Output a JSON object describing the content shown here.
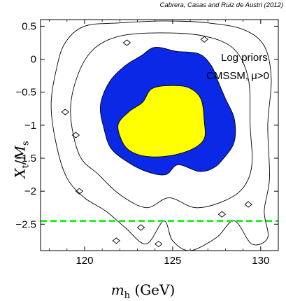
{
  "credit": "Cabrera, Casas and Ruiz de Austri (2012)",
  "chart_data": {
    "type": "contour",
    "xlabel_var": "m",
    "xlabel_sub": "h",
    "xlabel_unit": "(GeV)",
    "ylabel_var": "X",
    "ylabel_sub": "t",
    "ylabel_den": "M",
    "ylabel_den_sub": "s",
    "xlim": [
      117.5,
      131
    ],
    "ylim": [
      -2.9,
      0.6
    ],
    "x_ticks": [
      120,
      125,
      130
    ],
    "y_ticks": [
      0.5,
      0,
      -0.5,
      -1,
      -1.5,
      -2,
      -2.5
    ],
    "x_tick_labels": [
      "120",
      "125",
      "130"
    ],
    "y_tick_labels": [
      "0.5",
      "0",
      "−0.5",
      "−1",
      "−1.5",
      "−2",
      "−2.5"
    ],
    "annotations": [
      "Log priors",
      "CMSSM, μ>0"
    ],
    "reference_line": {
      "y": -2.45,
      "style": "dashed",
      "color": "#22ee22"
    },
    "regions": [
      {
        "level": "outer",
        "fill": "none",
        "stroke": "#000000",
        "points": [
          [
            118.1,
            -0.7
          ],
          [
            118.4,
            -0.15
          ],
          [
            118.9,
            0.25
          ],
          [
            120.0,
            0.5
          ],
          [
            122.0,
            0.55
          ],
          [
            124.5,
            0.58
          ],
          [
            127.0,
            0.55
          ],
          [
            129.0,
            0.45
          ],
          [
            130.2,
            0.2
          ],
          [
            130.6,
            -0.3
          ],
          [
            130.4,
            -1.0
          ],
          [
            130.5,
            -1.8
          ],
          [
            130.2,
            -2.3
          ],
          [
            130.4,
            -2.7
          ],
          [
            129.5,
            -2.8
          ],
          [
            128.5,
            -2.45
          ],
          [
            127.5,
            -2.7
          ],
          [
            126.0,
            -2.9
          ],
          [
            125.0,
            -2.75
          ],
          [
            124.5,
            -2.45
          ],
          [
            123.5,
            -2.8
          ],
          [
            122.3,
            -2.55
          ],
          [
            121.2,
            -2.3
          ],
          [
            120.0,
            -2.1
          ],
          [
            119.0,
            -1.8
          ],
          [
            118.4,
            -1.3
          ]
        ]
      },
      {
        "level": "middle",
        "fill": "none",
        "stroke": "#000000",
        "points": [
          [
            119.2,
            -0.8
          ],
          [
            119.6,
            -0.25
          ],
          [
            120.5,
            0.15
          ],
          [
            122.0,
            0.35
          ],
          [
            124.3,
            0.4
          ],
          [
            126.8,
            0.35
          ],
          [
            128.5,
            0.15
          ],
          [
            129.3,
            -0.3
          ],
          [
            129.4,
            -1.0
          ],
          [
            129.5,
            -1.6
          ],
          [
            129.0,
            -1.95
          ],
          [
            127.9,
            -2.15
          ],
          [
            126.3,
            -2.25
          ],
          [
            124.8,
            -2.1
          ],
          [
            123.5,
            -2.25
          ],
          [
            122.0,
            -2.05
          ],
          [
            120.8,
            -1.75
          ],
          [
            119.7,
            -1.45
          ]
        ]
      },
      {
        "level": "blue",
        "fill": "#0a28e6",
        "stroke": "#000000",
        "points": [
          [
            120.9,
            -0.7
          ],
          [
            121.4,
            -0.35
          ],
          [
            122.3,
            -0.1
          ],
          [
            123.2,
            0.05
          ],
          [
            124.0,
            0.18
          ],
          [
            125.2,
            0.12
          ],
          [
            126.5,
            0.08
          ],
          [
            127.2,
            -0.1
          ],
          [
            127.6,
            -0.35
          ],
          [
            128.0,
            -0.6
          ],
          [
            128.5,
            -0.9
          ],
          [
            128.5,
            -1.25
          ],
          [
            127.9,
            -1.5
          ],
          [
            127.3,
            -1.65
          ],
          [
            126.5,
            -1.7
          ],
          [
            125.3,
            -1.6
          ],
          [
            124.6,
            -1.75
          ],
          [
            123.5,
            -1.7
          ],
          [
            122.4,
            -1.55
          ],
          [
            121.5,
            -1.35
          ],
          [
            121.1,
            -1.05
          ]
        ]
      },
      {
        "level": "yellow",
        "fill": "#ffff00",
        "stroke": "#000000",
        "points": [
          [
            121.9,
            -1.0
          ],
          [
            122.5,
            -0.8
          ],
          [
            123.3,
            -0.65
          ],
          [
            123.8,
            -0.45
          ],
          [
            124.8,
            -0.4
          ],
          [
            125.9,
            -0.43
          ],
          [
            126.6,
            -0.6
          ],
          [
            126.8,
            -0.95
          ],
          [
            126.8,
            -1.2
          ],
          [
            126.2,
            -1.35
          ],
          [
            125.1,
            -1.45
          ],
          [
            123.8,
            -1.48
          ],
          [
            122.8,
            -1.42
          ],
          [
            122.2,
            -1.28
          ]
        ]
      }
    ],
    "islands": [
      [
        118.9,
        -0.8
      ],
      [
        119.5,
        -1.15
      ],
      [
        122.4,
        0.25
      ],
      [
        126.8,
        0.3
      ],
      [
        119.7,
        -2.0
      ],
      [
        129.3,
        -2.2
      ],
      [
        127.8,
        -2.35
      ],
      [
        121.8,
        -2.75
      ],
      [
        123.2,
        -2.55
      ],
      [
        124.2,
        -2.8
      ]
    ]
  }
}
